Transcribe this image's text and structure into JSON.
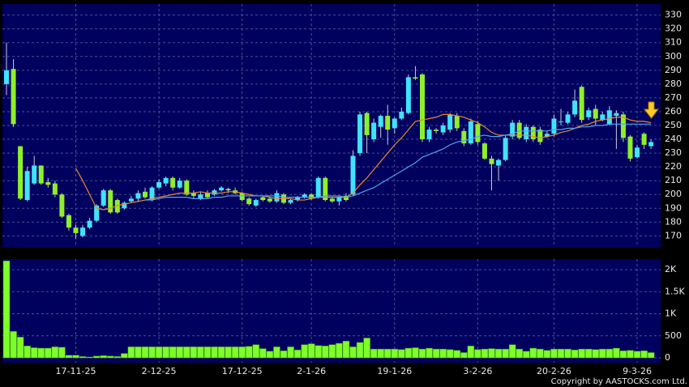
{
  "chart_data": [
    {
      "type": "candlestick",
      "up_color": "#3fe3ff",
      "down_color": "#8ef02a",
      "open": [
        280,
        291,
        235,
        196,
        208,
        221,
        209,
        208,
        200,
        185,
        176,
        170,
        176,
        181,
        192,
        203,
        196,
        190,
        195,
        197,
        202,
        196,
        205,
        208,
        212,
        205,
        210,
        201,
        197,
        201,
        200,
        203,
        204,
        203,
        201,
        197,
        192,
        198,
        197,
        195,
        200,
        194,
        196,
        198,
        200,
        198,
        212,
        197,
        195,
        199,
        200,
        230,
        259,
        240,
        249,
        257,
        248,
        255,
        259,
        285,
        287,
        240,
        247,
        245,
        247,
        257,
        246,
        237,
        251,
        237,
        226,
        221,
        225,
        242,
        252,
        240,
        249,
        247,
        242,
        244,
        253,
        252,
        258,
        278,
        256,
        262,
        254,
        251,
        257,
        258,
        242,
        227,
        244,
        235
      ],
      "high": [
        310,
        298,
        235,
        220,
        228,
        221,
        212,
        210,
        201,
        186,
        178,
        178,
        183,
        193,
        204,
        204,
        197,
        195,
        199,
        203,
        205,
        206,
        211,
        213,
        213,
        212,
        211,
        203,
        202,
        203,
        204,
        206,
        205,
        205,
        202,
        198,
        197,
        199,
        198,
        203,
        201,
        197,
        199,
        201,
        201,
        213,
        213,
        198,
        199,
        201,
        232,
        260,
        260,
        255,
        258,
        265,
        256,
        263,
        287,
        293,
        288,
        249,
        248,
        252,
        259,
        259,
        248,
        255,
        253,
        238,
        228,
        226,
        243,
        254,
        254,
        251,
        250,
        249,
        246,
        258,
        262,
        260,
        276,
        279,
        263,
        265,
        260,
        264,
        261,
        260,
        243,
        236,
        245,
        240
      ],
      "low": [
        272,
        249,
        196,
        195,
        207,
        207,
        205,
        198,
        183,
        174,
        168,
        169,
        175,
        180,
        191,
        186,
        186,
        189,
        194,
        195,
        197,
        195,
        204,
        206,
        203,
        204,
        199,
        197,
        196,
        197,
        199,
        202,
        201,
        200,
        195,
        192,
        191,
        195,
        194,
        194,
        193,
        193,
        195,
        197,
        196,
        197,
        195,
        194,
        192,
        195,
        199,
        228,
        230,
        238,
        241,
        236,
        244,
        254,
        258,
        283,
        238,
        238,
        244,
        243,
        245,
        246,
        235,
        236,
        236,
        225,
        203,
        210,
        224,
        240,
        240,
        238,
        238,
        236,
        241,
        242,
        250,
        251,
        256,
        252,
        254,
        250,
        253,
        250,
        233,
        238,
        224,
        226,
        233,
        233
      ],
      "close": [
        290,
        251,
        197,
        217,
        221,
        208,
        207,
        200,
        184,
        176,
        172,
        176,
        181,
        192,
        203,
        187,
        187,
        194,
        197,
        201,
        198,
        205,
        209,
        212,
        205,
        210,
        200,
        199,
        200,
        198,
        203,
        205,
        203,
        201,
        196,
        193,
        196,
        196,
        195,
        201,
        194,
        196,
        198,
        200,
        197,
        212,
        196,
        195,
        198,
        196,
        228,
        258,
        243,
        252,
        257,
        247,
        255,
        260,
        285,
        284,
        240,
        247,
        246,
        250,
        258,
        248,
        237,
        253,
        238,
        226,
        222,
        225,
        241,
        252,
        241,
        249,
        240,
        238,
        244,
        255,
        253,
        258,
        268,
        254,
        261,
        255,
        258,
        261,
        259,
        241,
        226,
        234,
        236,
        238
      ],
      "series": [
        {
          "color": "#e88a2a",
          "values": [
            null,
            null,
            null,
            null,
            null,
            null,
            null,
            null,
            null,
            null,
            219,
            210,
            200,
            190,
            189,
            190,
            192,
            193,
            194,
            195,
            196,
            197,
            198,
            199,
            200,
            201,
            201,
            201,
            202,
            201,
            201,
            201,
            202,
            202,
            201,
            200,
            199,
            199,
            198,
            197,
            197,
            197,
            196,
            196,
            197,
            198,
            198,
            198,
            198,
            198,
            201,
            207,
            212,
            218,
            224,
            230,
            236,
            241,
            247,
            253,
            254,
            255,
            256,
            258,
            258,
            257,
            256,
            254,
            252,
            249,
            245,
            243,
            243,
            243,
            243,
            243,
            242,
            241,
            242,
            243,
            245,
            246,
            248,
            250,
            251,
            253,
            254,
            255,
            256,
            256,
            254,
            253,
            253,
            252
          ]
        },
        {
          "color": "#4fa6ee",
          "values": [
            null,
            null,
            null,
            null,
            null,
            null,
            null,
            null,
            null,
            null,
            null,
            null,
            null,
            null,
            null,
            null,
            null,
            null,
            null,
            null,
            196,
            196,
            197,
            198,
            198,
            198,
            198,
            197,
            197,
            197,
            198,
            198,
            199,
            199,
            199,
            199,
            199,
            199,
            199,
            199,
            198,
            198,
            198,
            198,
            198,
            198,
            199,
            199,
            199,
            198,
            199,
            201,
            203,
            205,
            208,
            211,
            214,
            217,
            220,
            223,
            227,
            229,
            231,
            233,
            236,
            238,
            239,
            240,
            242,
            243,
            242,
            242,
            243,
            244,
            246,
            246,
            246,
            246,
            246,
            247,
            247,
            248,
            248,
            249,
            249,
            250,
            250,
            251,
            251,
            251,
            251,
            251,
            251,
            251
          ]
        }
      ],
      "ylim": [
        162,
        338
      ],
      "yticks": [
        170,
        180,
        190,
        200,
        210,
        220,
        230,
        240,
        250,
        260,
        270,
        280,
        290,
        300,
        310,
        320,
        330
      ],
      "grid": true
    },
    {
      "type": "bar",
      "color": "#7dff2a",
      "categories": [
        null,
        null,
        null,
        null,
        null,
        null,
        null,
        null,
        null,
        null,
        "17-11-25",
        null,
        null,
        null,
        null,
        null,
        null,
        null,
        null,
        null,
        null,
        null,
        "2-12-25",
        null,
        null,
        null,
        null,
        null,
        null,
        null,
        null,
        null,
        null,
        null,
        "17-12-25",
        null,
        null,
        null,
        null,
        null,
        null,
        null,
        null,
        null,
        "2-1-26",
        null,
        null,
        null,
        null,
        null,
        null,
        null,
        null,
        null,
        null,
        null,
        "19-1-26",
        null,
        null,
        null,
        null,
        null,
        null,
        null,
        null,
        null,
        null,
        null,
        "3-2-26",
        null,
        null,
        null,
        null,
        null,
        null,
        null,
        null,
        null,
        null,
        "20-2-26",
        null,
        null,
        null,
        null,
        null,
        null,
        null,
        null,
        null,
        null,
        null,
        "9-3-26",
        null,
        null
      ],
      "values": [
        2200,
        600,
        470,
        270,
        230,
        220,
        220,
        250,
        240,
        60,
        60,
        30,
        20,
        40,
        50,
        40,
        30,
        100,
        250,
        250,
        250,
        250,
        250,
        250,
        250,
        250,
        250,
        250,
        250,
        250,
        250,
        250,
        250,
        250,
        250,
        260,
        300,
        210,
        150,
        250,
        160,
        250,
        180,
        300,
        320,
        280,
        270,
        300,
        330,
        380,
        250,
        350,
        450,
        200,
        200,
        200,
        200,
        190,
        220,
        230,
        200,
        220,
        200,
        200,
        190,
        170,
        120,
        270,
        190,
        200,
        210,
        200,
        200,
        300,
        200,
        150,
        220,
        200,
        170,
        200,
        200,
        200,
        180,
        200,
        200,
        190,
        200,
        200,
        220,
        160,
        170,
        150,
        160,
        120
      ],
      "ylim": [
        -110,
        2240
      ],
      "yticks": [
        0,
        500,
        {
          "value": 1000,
          "label": "1K"
        },
        {
          "value": 1500,
          "label": "1.5K"
        },
        {
          "value": 2000,
          "label": "2K"
        }
      ],
      "grid": true
    }
  ],
  "copyright": "Copyright by AASTOCKS.com Ltd."
}
